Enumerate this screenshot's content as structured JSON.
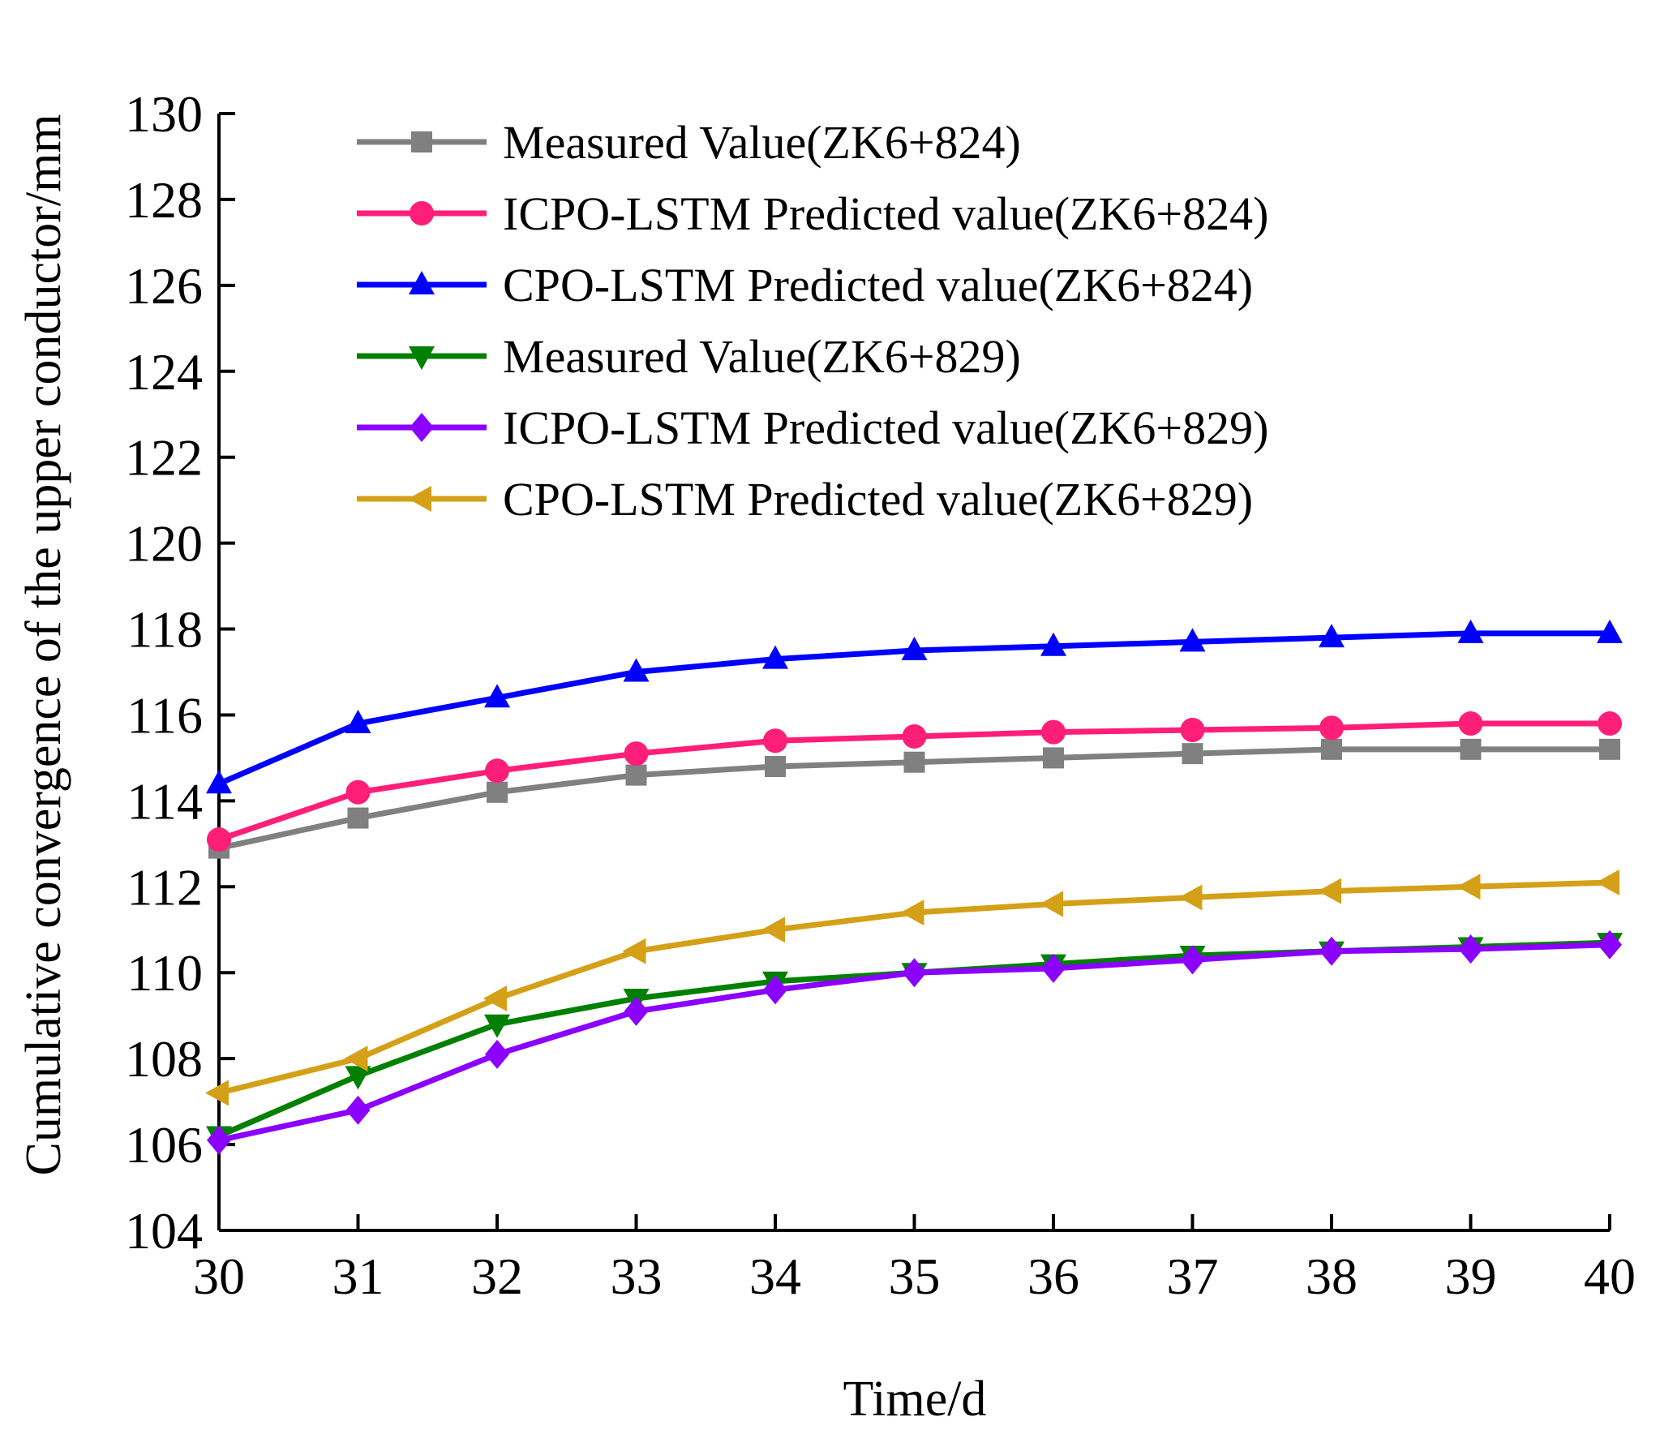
{
  "chart_data": {
    "type": "line",
    "title": "",
    "xlabel": "Time/d",
    "ylabel": "Cumulative convergence of the upper conductor/mm",
    "xlim": [
      30,
      40
    ],
    "ylim": [
      104,
      130
    ],
    "xticks": [
      30,
      31,
      32,
      33,
      34,
      35,
      36,
      37,
      38,
      39,
      40
    ],
    "yticks": [
      104,
      106,
      108,
      110,
      112,
      114,
      116,
      118,
      120,
      122,
      124,
      126,
      128,
      130
    ],
    "x": [
      30,
      31,
      32,
      33,
      34,
      35,
      36,
      37,
      38,
      39,
      40
    ],
    "grid": false,
    "legend_position": "top-left",
    "series": [
      {
        "name": "Measured Value(ZK6+824)",
        "color": "#808080",
        "marker": "square",
        "values": [
          112.9,
          113.6,
          114.2,
          114.6,
          114.8,
          114.9,
          115.0,
          115.1,
          115.2,
          115.2,
          115.2
        ]
      },
      {
        "name": "ICPO-LSTM Predicted value(ZK6+824)",
        "color": "#FF1E78",
        "marker": "circle",
        "values": [
          113.1,
          114.2,
          114.7,
          115.1,
          115.4,
          115.5,
          115.6,
          115.65,
          115.7,
          115.8,
          115.8
        ]
      },
      {
        "name": "CPO-LSTM Predicted value(ZK6+824)",
        "color": "#0000FF",
        "marker": "triangle-up",
        "values": [
          114.4,
          115.8,
          116.4,
          117.0,
          117.3,
          117.5,
          117.6,
          117.7,
          117.8,
          117.9,
          117.9
        ]
      },
      {
        "name": "Measured Value(ZK6+829)",
        "color": "#008000",
        "marker": "triangle-down",
        "values": [
          106.2,
          107.6,
          108.8,
          109.4,
          109.8,
          110.0,
          110.2,
          110.4,
          110.5,
          110.6,
          110.7
        ]
      },
      {
        "name": "ICPO-LSTM Predicted value(ZK6+829)",
        "color": "#8B00FF",
        "marker": "diamond",
        "values": [
          106.1,
          106.8,
          108.1,
          109.1,
          109.6,
          110.0,
          110.1,
          110.3,
          110.5,
          110.55,
          110.65
        ]
      },
      {
        "name": "CPO-LSTM Predicted value(ZK6+829)",
        "color": "#D4A017",
        "marker": "triangle-left",
        "values": [
          107.2,
          108.0,
          109.4,
          110.5,
          111.0,
          111.4,
          111.6,
          111.75,
          111.9,
          112.0,
          112.1
        ]
      }
    ]
  }
}
